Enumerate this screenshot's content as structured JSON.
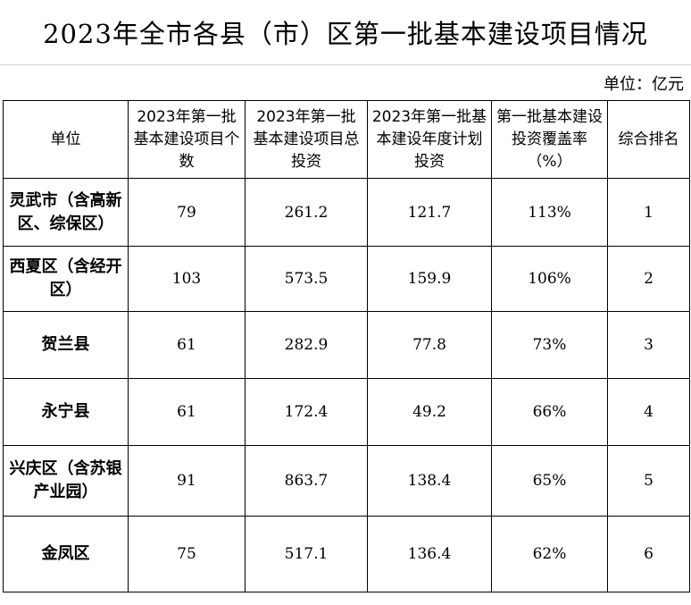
{
  "title": "2023年全市各县（市）区第一批基本建设项目情况",
  "unit_note": "单位：亿元",
  "table": {
    "headers": [
      "单位",
      "2023年第一批基本建设项目个数",
      "2023年第一批基本建设项目总投资",
      "2023年第一批基本建设年度计划投资",
      "第一批基本建设投资覆盖率（%）",
      "综合排名"
    ],
    "rows": [
      {
        "name": "灵武市（含高新区、综保区）",
        "count": "79",
        "total": "261.2",
        "annual": "121.7",
        "coverage": "113%",
        "rank": "1"
      },
      {
        "name": "西夏区（含经开区）",
        "count": "103",
        "total": "573.5",
        "annual": "159.9",
        "coverage": "106%",
        "rank": "2"
      },
      {
        "name": "贺兰县",
        "count": "61",
        "total": "282.9",
        "annual": "77.8",
        "coverage": "73%",
        "rank": "3"
      },
      {
        "name": "永宁县",
        "count": "61",
        "total": "172.4",
        "annual": "49.2",
        "coverage": "66%",
        "rank": "4"
      },
      {
        "name": "兴庆区（含苏银产业园）",
        "count": "91",
        "total": "863.7",
        "annual": "138.4",
        "coverage": "65%",
        "rank": "5"
      },
      {
        "name": "金凤区",
        "count": "75",
        "total": "517.1",
        "annual": "136.4",
        "coverage": "62%",
        "rank": "6"
      }
    ]
  }
}
